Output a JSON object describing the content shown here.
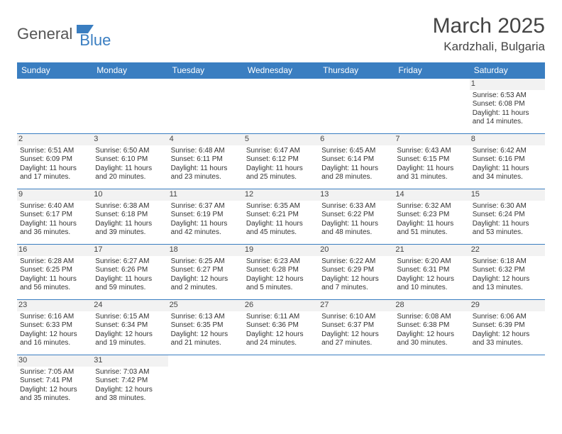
{
  "brand": {
    "general": "General",
    "blue": "Blue",
    "shape_color": "#3a7ec1"
  },
  "title": "March 2025",
  "location": "Kardzhali, Bulgaria",
  "header_bg": "#3a7ec1",
  "border_color": "#3a7ec1",
  "weekdays": [
    "Sunday",
    "Monday",
    "Tuesday",
    "Wednesday",
    "Thursday",
    "Friday",
    "Saturday"
  ],
  "cells": [
    [
      null,
      null,
      null,
      null,
      null,
      null,
      {
        "d": "1",
        "sr": "Sunrise: 6:53 AM",
        "ss": "Sunset: 6:08 PM",
        "dl1": "Daylight: 11 hours",
        "dl2": "and 14 minutes."
      }
    ],
    [
      {
        "d": "2",
        "sr": "Sunrise: 6:51 AM",
        "ss": "Sunset: 6:09 PM",
        "dl1": "Daylight: 11 hours",
        "dl2": "and 17 minutes."
      },
      {
        "d": "3",
        "sr": "Sunrise: 6:50 AM",
        "ss": "Sunset: 6:10 PM",
        "dl1": "Daylight: 11 hours",
        "dl2": "and 20 minutes."
      },
      {
        "d": "4",
        "sr": "Sunrise: 6:48 AM",
        "ss": "Sunset: 6:11 PM",
        "dl1": "Daylight: 11 hours",
        "dl2": "and 23 minutes."
      },
      {
        "d": "5",
        "sr": "Sunrise: 6:47 AM",
        "ss": "Sunset: 6:12 PM",
        "dl1": "Daylight: 11 hours",
        "dl2": "and 25 minutes."
      },
      {
        "d": "6",
        "sr": "Sunrise: 6:45 AM",
        "ss": "Sunset: 6:14 PM",
        "dl1": "Daylight: 11 hours",
        "dl2": "and 28 minutes."
      },
      {
        "d": "7",
        "sr": "Sunrise: 6:43 AM",
        "ss": "Sunset: 6:15 PM",
        "dl1": "Daylight: 11 hours",
        "dl2": "and 31 minutes."
      },
      {
        "d": "8",
        "sr": "Sunrise: 6:42 AM",
        "ss": "Sunset: 6:16 PM",
        "dl1": "Daylight: 11 hours",
        "dl2": "and 34 minutes."
      }
    ],
    [
      {
        "d": "9",
        "sr": "Sunrise: 6:40 AM",
        "ss": "Sunset: 6:17 PM",
        "dl1": "Daylight: 11 hours",
        "dl2": "and 36 minutes."
      },
      {
        "d": "10",
        "sr": "Sunrise: 6:38 AM",
        "ss": "Sunset: 6:18 PM",
        "dl1": "Daylight: 11 hours",
        "dl2": "and 39 minutes."
      },
      {
        "d": "11",
        "sr": "Sunrise: 6:37 AM",
        "ss": "Sunset: 6:19 PM",
        "dl1": "Daylight: 11 hours",
        "dl2": "and 42 minutes."
      },
      {
        "d": "12",
        "sr": "Sunrise: 6:35 AM",
        "ss": "Sunset: 6:21 PM",
        "dl1": "Daylight: 11 hours",
        "dl2": "and 45 minutes."
      },
      {
        "d": "13",
        "sr": "Sunrise: 6:33 AM",
        "ss": "Sunset: 6:22 PM",
        "dl1": "Daylight: 11 hours",
        "dl2": "and 48 minutes."
      },
      {
        "d": "14",
        "sr": "Sunrise: 6:32 AM",
        "ss": "Sunset: 6:23 PM",
        "dl1": "Daylight: 11 hours",
        "dl2": "and 51 minutes."
      },
      {
        "d": "15",
        "sr": "Sunrise: 6:30 AM",
        "ss": "Sunset: 6:24 PM",
        "dl1": "Daylight: 11 hours",
        "dl2": "and 53 minutes."
      }
    ],
    [
      {
        "d": "16",
        "sr": "Sunrise: 6:28 AM",
        "ss": "Sunset: 6:25 PM",
        "dl1": "Daylight: 11 hours",
        "dl2": "and 56 minutes."
      },
      {
        "d": "17",
        "sr": "Sunrise: 6:27 AM",
        "ss": "Sunset: 6:26 PM",
        "dl1": "Daylight: 11 hours",
        "dl2": "and 59 minutes."
      },
      {
        "d": "18",
        "sr": "Sunrise: 6:25 AM",
        "ss": "Sunset: 6:27 PM",
        "dl1": "Daylight: 12 hours",
        "dl2": "and 2 minutes."
      },
      {
        "d": "19",
        "sr": "Sunrise: 6:23 AM",
        "ss": "Sunset: 6:28 PM",
        "dl1": "Daylight: 12 hours",
        "dl2": "and 5 minutes."
      },
      {
        "d": "20",
        "sr": "Sunrise: 6:22 AM",
        "ss": "Sunset: 6:29 PM",
        "dl1": "Daylight: 12 hours",
        "dl2": "and 7 minutes."
      },
      {
        "d": "21",
        "sr": "Sunrise: 6:20 AM",
        "ss": "Sunset: 6:31 PM",
        "dl1": "Daylight: 12 hours",
        "dl2": "and 10 minutes."
      },
      {
        "d": "22",
        "sr": "Sunrise: 6:18 AM",
        "ss": "Sunset: 6:32 PM",
        "dl1": "Daylight: 12 hours",
        "dl2": "and 13 minutes."
      }
    ],
    [
      {
        "d": "23",
        "sr": "Sunrise: 6:16 AM",
        "ss": "Sunset: 6:33 PM",
        "dl1": "Daylight: 12 hours",
        "dl2": "and 16 minutes."
      },
      {
        "d": "24",
        "sr": "Sunrise: 6:15 AM",
        "ss": "Sunset: 6:34 PM",
        "dl1": "Daylight: 12 hours",
        "dl2": "and 19 minutes."
      },
      {
        "d": "25",
        "sr": "Sunrise: 6:13 AM",
        "ss": "Sunset: 6:35 PM",
        "dl1": "Daylight: 12 hours",
        "dl2": "and 21 minutes."
      },
      {
        "d": "26",
        "sr": "Sunrise: 6:11 AM",
        "ss": "Sunset: 6:36 PM",
        "dl1": "Daylight: 12 hours",
        "dl2": "and 24 minutes."
      },
      {
        "d": "27",
        "sr": "Sunrise: 6:10 AM",
        "ss": "Sunset: 6:37 PM",
        "dl1": "Daylight: 12 hours",
        "dl2": "and 27 minutes."
      },
      {
        "d": "28",
        "sr": "Sunrise: 6:08 AM",
        "ss": "Sunset: 6:38 PM",
        "dl1": "Daylight: 12 hours",
        "dl2": "and 30 minutes."
      },
      {
        "d": "29",
        "sr": "Sunrise: 6:06 AM",
        "ss": "Sunset: 6:39 PM",
        "dl1": "Daylight: 12 hours",
        "dl2": "and 33 minutes."
      }
    ],
    [
      {
        "d": "30",
        "sr": "Sunrise: 7:05 AM",
        "ss": "Sunset: 7:41 PM",
        "dl1": "Daylight: 12 hours",
        "dl2": "and 35 minutes."
      },
      {
        "d": "31",
        "sr": "Sunrise: 7:03 AM",
        "ss": "Sunset: 7:42 PM",
        "dl1": "Daylight: 12 hours",
        "dl2": "and 38 minutes."
      },
      null,
      null,
      null,
      null,
      null
    ]
  ]
}
